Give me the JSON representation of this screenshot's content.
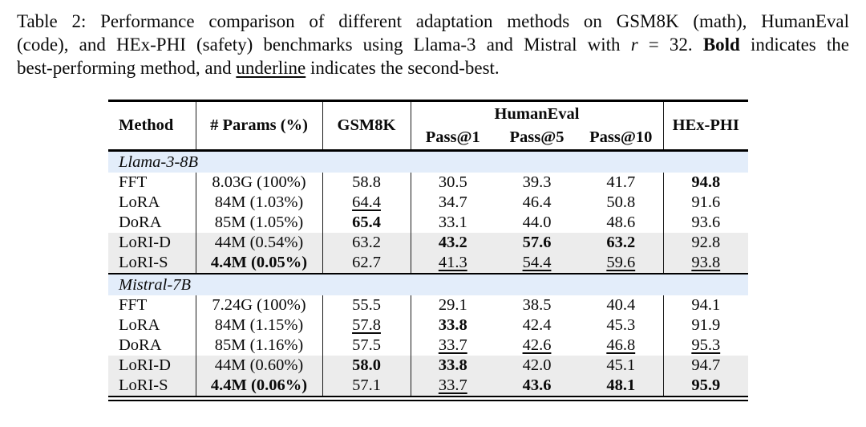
{
  "caption": {
    "lines": [
      [
        {
          "t": "Table 2: Performance comparison of different adaptation methods on GSM8K (math), HumanEval",
          "s": "n"
        }
      ],
      [
        {
          "t": "(code), and HEx-PHI (safety) benchmarks using Llama-3 and Mistral with ",
          "s": "n"
        },
        {
          "t": "r",
          "s": "i"
        },
        {
          "t": " = 32. ",
          "s": "n"
        },
        {
          "t": "Bold",
          "s": "b"
        },
        {
          "t": " indicates the",
          "s": "n"
        }
      ],
      [
        {
          "t": "best-performing method, and ",
          "s": "n"
        },
        {
          "t": "underline",
          "s": "u"
        },
        {
          "t": " indicates the second-best.",
          "s": "n"
        }
      ]
    ]
  },
  "table": {
    "columns": [
      "Method",
      "# Params (%)",
      "GSM8K",
      "Pass@1",
      "Pass@5",
      "Pass@10",
      "HEx-PHI"
    ],
    "group_header": "HumanEval",
    "colors": {
      "section_bg": "#e3edfa",
      "shade_bg": "#ececec",
      "rule": "#000000"
    },
    "sections": [
      {
        "name": "Llama-3-8B",
        "rows": [
          {
            "method": "FFT",
            "shaded": false,
            "cells": [
              {
                "t": "8.03G (100%)",
                "s": "n"
              },
              {
                "t": "58.8",
                "s": "n"
              },
              {
                "t": "30.5",
                "s": "n"
              },
              {
                "t": "39.3",
                "s": "n"
              },
              {
                "t": "41.7",
                "s": "n"
              },
              {
                "t": "94.8",
                "s": "b"
              }
            ]
          },
          {
            "method": "LoRA",
            "shaded": false,
            "cells": [
              {
                "t": "84M (1.03%)",
                "s": "n"
              },
              {
                "t": "64.4",
                "s": "u"
              },
              {
                "t": "34.7",
                "s": "n"
              },
              {
                "t": "46.4",
                "s": "n"
              },
              {
                "t": "50.8",
                "s": "n"
              },
              {
                "t": "91.6",
                "s": "n"
              }
            ]
          },
          {
            "method": "DoRA",
            "shaded": false,
            "cells": [
              {
                "t": "85M (1.05%)",
                "s": "n"
              },
              {
                "t": "65.4",
                "s": "b"
              },
              {
                "t": "33.1",
                "s": "n"
              },
              {
                "t": "44.0",
                "s": "n"
              },
              {
                "t": "48.6",
                "s": "n"
              },
              {
                "t": "93.6",
                "s": "n"
              }
            ]
          },
          {
            "method": "LoRI-D",
            "shaded": true,
            "cells": [
              {
                "t": "44M (0.54%)",
                "s": "n"
              },
              {
                "t": "63.2",
                "s": "n"
              },
              {
                "t": "43.2",
                "s": "b"
              },
              {
                "t": "57.6",
                "s": "b"
              },
              {
                "t": "63.2",
                "s": "b"
              },
              {
                "t": "92.8",
                "s": "n"
              }
            ]
          },
          {
            "method": "LoRI-S",
            "shaded": true,
            "cells": [
              {
                "t": "4.4M (0.05%)",
                "s": "b"
              },
              {
                "t": "62.7",
                "s": "n"
              },
              {
                "t": "41.3",
                "s": "u"
              },
              {
                "t": "54.4",
                "s": "u"
              },
              {
                "t": "59.6",
                "s": "u"
              },
              {
                "t": "93.8",
                "s": "u"
              }
            ]
          }
        ]
      },
      {
        "name": "Mistral-7B",
        "rows": [
          {
            "method": "FFT",
            "shaded": false,
            "cells": [
              {
                "t": "7.24G (100%)",
                "s": "n"
              },
              {
                "t": "55.5",
                "s": "n"
              },
              {
                "t": "29.1",
                "s": "n"
              },
              {
                "t": "38.5",
                "s": "n"
              },
              {
                "t": "40.4",
                "s": "n"
              },
              {
                "t": "94.1",
                "s": "n"
              }
            ]
          },
          {
            "method": "LoRA",
            "shaded": false,
            "cells": [
              {
                "t": "84M (1.15%)",
                "s": "n"
              },
              {
                "t": "57.8",
                "s": "u"
              },
              {
                "t": "33.8",
                "s": "b"
              },
              {
                "t": "42.4",
                "s": "n"
              },
              {
                "t": "45.3",
                "s": "n"
              },
              {
                "t": "91.9",
                "s": "n"
              }
            ]
          },
          {
            "method": "DoRA",
            "shaded": false,
            "cells": [
              {
                "t": "85M (1.16%)",
                "s": "n"
              },
              {
                "t": "57.5",
                "s": "n"
              },
              {
                "t": "33.7",
                "s": "u"
              },
              {
                "t": "42.6",
                "s": "u"
              },
              {
                "t": "46.8",
                "s": "u"
              },
              {
                "t": "95.3",
                "s": "u"
              }
            ]
          },
          {
            "method": "LoRI-D",
            "shaded": true,
            "cells": [
              {
                "t": "44M (0.60%)",
                "s": "n"
              },
              {
                "t": "58.0",
                "s": "b"
              },
              {
                "t": "33.8",
                "s": "b"
              },
              {
                "t": "42.0",
                "s": "n"
              },
              {
                "t": "45.1",
                "s": "n"
              },
              {
                "t": "94.7",
                "s": "n"
              }
            ]
          },
          {
            "method": "LoRI-S",
            "shaded": true,
            "cells": [
              {
                "t": "4.4M (0.06%)",
                "s": "b"
              },
              {
                "t": "57.1",
                "s": "n"
              },
              {
                "t": "33.7",
                "s": "u"
              },
              {
                "t": "43.6",
                "s": "b"
              },
              {
                "t": "48.1",
                "s": "b"
              },
              {
                "t": "95.9",
                "s": "b"
              }
            ]
          }
        ]
      }
    ]
  }
}
